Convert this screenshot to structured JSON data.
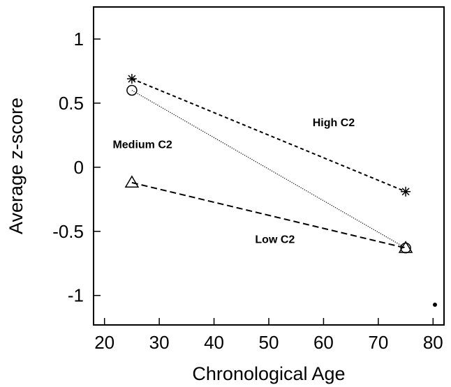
{
  "chart_data": {
    "type": "line",
    "xlabel": "Chronological Age",
    "ylabel": "Average z-score",
    "xlim": [
      18,
      82
    ],
    "ylim": [
      -1.23,
      1.25
    ],
    "x_ticks": [
      20,
      30,
      40,
      50,
      60,
      70,
      80
    ],
    "y_ticks": [
      -1,
      -0.5,
      0,
      0.5,
      1
    ],
    "x_tick_labels": [
      "20",
      "30",
      "40",
      "50",
      "60",
      "70",
      "80"
    ],
    "y_tick_labels": [
      "-1",
      "-0.5",
      "0",
      "0.5",
      "1"
    ],
    "grid": false,
    "series": [
      {
        "name": "High C2",
        "marker": "asterisk",
        "line_style": "short-dash",
        "x": [
          25,
          75
        ],
        "y": [
          0.69,
          -0.19
        ]
      },
      {
        "name": "Medium C2",
        "marker": "circle",
        "line_style": "dotted",
        "x": [
          25,
          75
        ],
        "y": [
          0.6,
          -0.63
        ]
      },
      {
        "name": "Low C2",
        "marker": "triangle",
        "line_style": "dashed",
        "x": [
          25,
          75
        ],
        "y": [
          -0.12,
          -0.63
        ]
      }
    ],
    "annotations": [
      {
        "text": "High C2",
        "x": 58,
        "y": 0.32
      },
      {
        "text": "Medium C2",
        "x": 21.5,
        "y": 0.15
      },
      {
        "text": "Low C2",
        "x": 47.5,
        "y": -0.59
      }
    ]
  }
}
